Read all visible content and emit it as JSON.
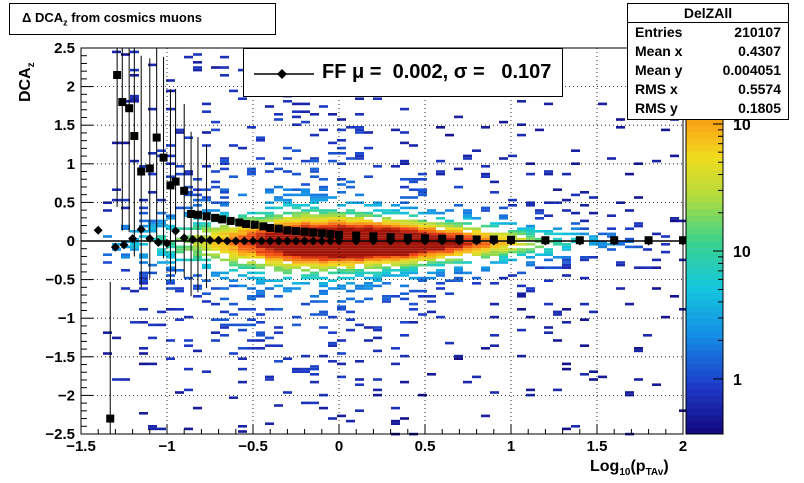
{
  "chart_data": {
    "type": "heatmap",
    "title": "Δ DCA_z from cosmics muons",
    "xlabel": "Log_10(p_TAv)",
    "ylabel": "DCA_z",
    "xlim": [
      -1.5,
      2
    ],
    "ylim": [
      -2.5,
      2.5
    ],
    "x_ticks": [
      "−1.5",
      "−1",
      "−0.5",
      "0",
      "0.5",
      "1",
      "1.5",
      "2"
    ],
    "y_ticks": [
      "−2.5",
      "−2",
      "−1.5",
      "−1",
      "−0.5",
      "0",
      "0.5",
      "1",
      "1.5",
      "2",
      "2.5"
    ],
    "z_scale": "log",
    "z_ticks": [
      "1",
      "10",
      "10"
    ],
    "grid": true,
    "stats": {
      "name": "DelZAll",
      "rows": [
        {
          "label": "Entries",
          "value": "210107"
        },
        {
          "label": "Mean x",
          "value": "0.4307"
        },
        {
          "label": "Mean y",
          "value": "0.004051"
        },
        {
          "label": "RMS x",
          "value": "0.5574"
        },
        {
          "label": "RMS y",
          "value": "0.1805"
        }
      ]
    },
    "legend": {
      "label": "FF μ =  0.002, σ =   0.107"
    },
    "mean_profile": {
      "x": [
        -1.33,
        -1.29,
        -1.26,
        -1.22,
        -1.19,
        -1.15,
        -1.1,
        -1.06,
        -1.02,
        -0.98,
        -0.95,
        -0.9,
        -0.86,
        -0.82,
        -0.77,
        -0.72,
        -0.68,
        -0.63,
        -0.58,
        -0.54,
        -0.49,
        -0.44,
        -0.4,
        -0.35,
        -0.3,
        -0.25,
        -0.2,
        -0.15,
        -0.1,
        -0.05,
        0,
        0.1,
        0.2,
        0.3,
        0.4,
        0.5,
        0.6,
        0.7,
        0.8,
        0.9,
        1.0,
        1.2,
        1.4,
        1.6,
        1.8,
        2.0
      ],
      "y": [
        -2.3,
        2.15,
        1.8,
        1.72,
        1.36,
        0.9,
        0.94,
        1.34,
        1.08,
        0.72,
        0.77,
        0.65,
        0.35,
        0.34,
        0.32,
        0.3,
        0.28,
        0.26,
        0.24,
        0.22,
        0.21,
        0.19,
        0.17,
        0.16,
        0.14,
        0.13,
        0.12,
        0.11,
        0.1,
        0.09,
        0.08,
        0.07,
        0.06,
        0.05,
        0.04,
        0.035,
        0.03,
        0.025,
        0.02,
        0.02,
        0.015,
        0.01,
        0.01,
        0.01,
        0.01,
        0.01
      ]
    },
    "fit_profile": {
      "x": [
        -1.4,
        -1.3,
        -1.25,
        -1.2,
        -1.15,
        -1.1,
        -1.05,
        -1.0,
        -0.95,
        -0.9,
        -0.85,
        -0.8,
        -0.75,
        -0.7,
        -0.65,
        -0.6,
        -0.55,
        -0.5,
        -0.45,
        -0.4,
        -0.35,
        -0.3,
        -0.25,
        -0.2,
        -0.15,
        -0.1,
        -0.05,
        0,
        0.1,
        0.2,
        0.3,
        0.4,
        0.5,
        0.6,
        0.7,
        0.8,
        0.9,
        1.0,
        1.2,
        1.4,
        1.6,
        1.8,
        2.0
      ],
      "y": [
        0.14,
        -0.08,
        -0.05,
        0.03,
        0.15,
        0.03,
        -0.02,
        -0.03,
        0.13,
        0.04,
        0.02,
        0.02,
        0.01,
        0.01,
        0.0,
        0.0,
        0.0,
        0.0,
        0.0,
        0.0,
        0.0,
        0.0,
        0.0,
        0.0,
        0.0,
        0.0,
        0.0,
        0.0,
        0.0,
        0.0,
        0.0,
        0.0,
        0.0,
        0.0,
        0.0,
        0.0,
        0.0,
        0.0,
        0.0,
        0.0,
        0.0,
        0.0,
        0.0
      ]
    }
  }
}
